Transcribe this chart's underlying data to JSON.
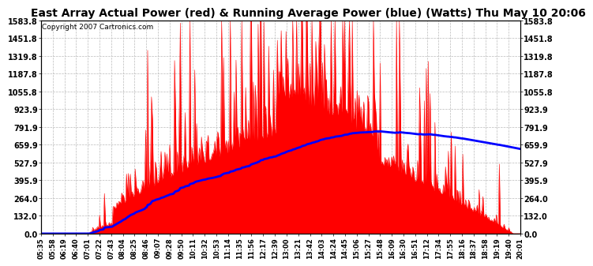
{
  "title": "East Array Actual Power (red) & Running Average Power (blue) (Watts) Thu May 10 20:06",
  "copyright": "Copyright 2007 Cartronics.com",
  "yticks": [
    0.0,
    132.0,
    264.0,
    395.9,
    527.9,
    659.9,
    791.9,
    923.9,
    1055.8,
    1187.8,
    1319.8,
    1451.8,
    1583.8
  ],
  "ylim": [
    0,
    1583.8
  ],
  "background_color": "#ffffff",
  "grid_color": "#bbbbbb",
  "red_color": "#ff0000",
  "blue_color": "#0000ff",
  "title_fontsize": 10,
  "copyright_fontsize": 6.5,
  "xtick_labels": [
    "05:35",
    "05:58",
    "06:19",
    "06:40",
    "07:01",
    "07:22",
    "07:43",
    "08:04",
    "08:25",
    "08:46",
    "09:07",
    "09:28",
    "09:50",
    "10:11",
    "10:32",
    "10:53",
    "11:14",
    "11:35",
    "11:56",
    "12:17",
    "12:39",
    "13:00",
    "13:21",
    "13:42",
    "14:03",
    "14:24",
    "14:45",
    "15:06",
    "15:27",
    "15:48",
    "16:09",
    "16:30",
    "16:51",
    "17:12",
    "17:34",
    "17:55",
    "18:16",
    "18:37",
    "18:58",
    "19:19",
    "19:40",
    "20:01"
  ],
  "n_points": 500
}
